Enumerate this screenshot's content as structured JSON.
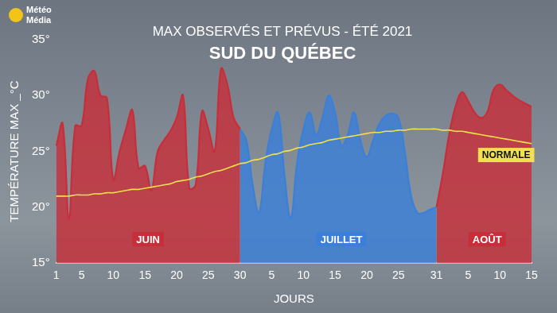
{
  "chart_data": {
    "type": "line",
    "logo_text": "Météo Média",
    "title": "MAX OBSERVÉS ET PRÉVUS - ÉTÉ 2021",
    "subtitle": "SUD DU QUÉBEC",
    "y_label": "TEMPÉRATURE MAX _°C",
    "x_label": "JOURS",
    "categories": [
      "1",
      null,
      null,
      null,
      "5",
      null,
      null,
      null,
      null,
      "10",
      null,
      null,
      null,
      null,
      "15",
      null,
      null,
      null,
      null,
      "20",
      null,
      null,
      null,
      null,
      "25",
      null,
      null,
      null,
      null,
      "30",
      null,
      null,
      null,
      null,
      "5",
      null,
      null,
      null,
      null,
      "10",
      null,
      null,
      null,
      null,
      "15",
      null,
      null,
      null,
      null,
      "20",
      null,
      null,
      null,
      null,
      "25",
      null,
      null,
      null,
      null,
      null,
      "31",
      null,
      null,
      null,
      null,
      "5",
      null,
      null,
      null,
      null,
      "10",
      null,
      null,
      null,
      null,
      "15"
    ],
    "series": [
      {
        "name": "JUIN",
        "type": "area",
        "color": "#c62f3a",
        "values": [
          25.5,
          27.5,
          19,
          27.3,
          27.3,
          31.5,
          32.2,
          30,
          29.8,
          22.5,
          25,
          27,
          28.7,
          23.5,
          23.7,
          21.5,
          25,
          26,
          26.8,
          28,
          30,
          21.7,
          22,
          28.6,
          27,
          25,
          32.4,
          31,
          28,
          27,
          null,
          null,
          null,
          null,
          null,
          null,
          null,
          null,
          null,
          null,
          null,
          null,
          null,
          null,
          null,
          null,
          null,
          null,
          null,
          null,
          null,
          null,
          null,
          null,
          null,
          null,
          null,
          null,
          null,
          null,
          null,
          null,
          null,
          null,
          null,
          null,
          null,
          null,
          null,
          null,
          null,
          null,
          null,
          null,
          null,
          null
        ]
      },
      {
        "name": "JUILLET",
        "type": "area",
        "color": "#3b7fd8",
        "values": [
          null,
          null,
          null,
          null,
          null,
          null,
          null,
          null,
          null,
          null,
          null,
          null,
          null,
          null,
          null,
          null,
          null,
          null,
          null,
          null,
          null,
          null,
          null,
          null,
          null,
          null,
          null,
          null,
          null,
          null,
          26,
          22,
          19.5,
          24,
          27,
          28.5,
          23,
          19,
          24,
          27,
          28.5,
          26.5,
          28,
          30,
          28.5,
          25.5,
          26.5,
          28.5,
          26,
          24.5,
          26,
          27.5,
          28.2,
          28.4,
          28,
          25,
          21,
          19.5,
          19.5,
          19.8,
          20,
          null,
          null,
          null,
          null,
          null,
          null,
          null,
          null,
          null,
          null,
          null,
          null,
          null,
          null,
          null
        ]
      },
      {
        "name": "AOÛT",
        "type": "area",
        "color": "#c62f3a",
        "values": [
          null,
          null,
          null,
          null,
          null,
          null,
          null,
          null,
          null,
          null,
          null,
          null,
          null,
          null,
          null,
          null,
          null,
          null,
          null,
          null,
          null,
          null,
          null,
          null,
          null,
          null,
          null,
          null,
          null,
          null,
          null,
          null,
          null,
          null,
          null,
          null,
          null,
          null,
          null,
          null,
          null,
          null,
          null,
          null,
          null,
          null,
          null,
          null,
          null,
          null,
          null,
          null,
          null,
          null,
          null,
          null,
          null,
          null,
          null,
          null,
          null,
          23,
          26.5,
          29,
          30.3,
          29.5,
          28.5,
          28,
          28.5,
          30.5,
          31,
          30.5,
          30,
          29.6,
          29.3,
          29
        ]
      },
      {
        "name": "NORMALE",
        "type": "line",
        "color": "#f2e14c",
        "values": [
          21.0,
          21.0,
          21.0,
          21.1,
          21.1,
          21.1,
          21.2,
          21.2,
          21.3,
          21.3,
          21.4,
          21.5,
          21.6,
          21.6,
          21.7,
          21.8,
          21.9,
          22.0,
          22.1,
          22.3,
          22.4,
          22.5,
          22.7,
          22.8,
          23.0,
          23.2,
          23.3,
          23.5,
          23.7,
          23.9,
          24.0,
          24.2,
          24.3,
          24.5,
          24.7,
          24.8,
          25.0,
          25.1,
          25.3,
          25.4,
          25.6,
          25.7,
          25.8,
          26.0,
          26.1,
          26.2,
          26.3,
          26.4,
          26.5,
          26.6,
          26.7,
          26.7,
          26.8,
          26.8,
          26.9,
          26.9,
          27.0,
          27.0,
          27.0,
          27.0,
          27.0,
          26.9,
          26.9,
          26.8,
          26.8,
          26.7,
          26.6,
          26.5,
          26.4,
          26.3,
          26.2,
          26.1,
          26.0,
          25.9,
          25.8,
          25.7
        ]
      }
    ],
    "ylim": [
      15,
      35
    ],
    "yticks": [
      {
        "value": 15,
        "label": "15°"
      },
      {
        "value": 20,
        "label": "20°"
      },
      {
        "value": 25,
        "label": "25°"
      },
      {
        "value": 30,
        "label": "30°"
      },
      {
        "value": 35,
        "label": "35°"
      }
    ],
    "grid": false
  }
}
